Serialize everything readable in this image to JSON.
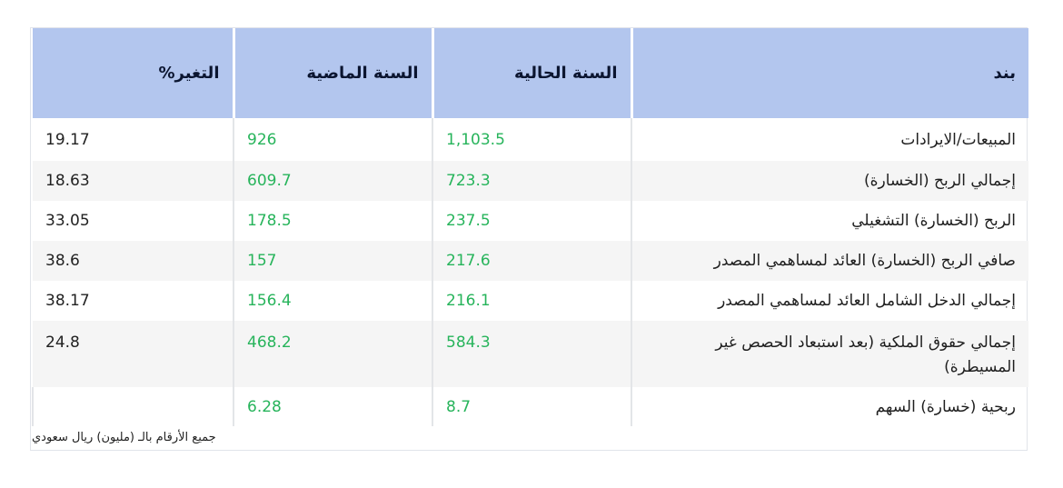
{
  "table": {
    "headers": {
      "item": "بند",
      "current_year": "السنة الحالية",
      "previous_year": "السنة الماضية",
      "change": "التغير%"
    },
    "rows": [
      {
        "item": "المبيعات/الايرادات",
        "current": "1,103.5",
        "previous": "926",
        "change": "19.17"
      },
      {
        "item": "إجمالي الربح (الخسارة)",
        "current": "723.3",
        "previous": "609.7",
        "change": "18.63"
      },
      {
        "item": "الربح (الخسارة) التشغيلي",
        "current": "237.5",
        "previous": "178.5",
        "change": "33.05"
      },
      {
        "item": "صافي الربح (الخسارة) العائد لمساهمي المصدر",
        "current": "217.6",
        "previous": "157",
        "change": "38.6"
      },
      {
        "item": "إجمالي الدخل الشامل العائد لمساهمي المصدر",
        "current": "216.1",
        "previous": "156.4",
        "change": "38.17"
      },
      {
        "item": "إجمالي حقوق الملكية (بعد استبعاد الحصص غير المسيطرة)",
        "current": "584.3",
        "previous": "468.2",
        "change": "24.8"
      },
      {
        "item": "ربحية (خسارة) السهم",
        "current": "8.7",
        "previous": "6.28",
        "change": ""
      }
    ]
  },
  "footnote": "جميع الأرقام بالـ (مليون) ريال سعودي",
  "colors": {
    "header_bg": "#b3c6ee",
    "value_green": "#27b45b",
    "alt_row_bg": "#f5f5f5"
  }
}
